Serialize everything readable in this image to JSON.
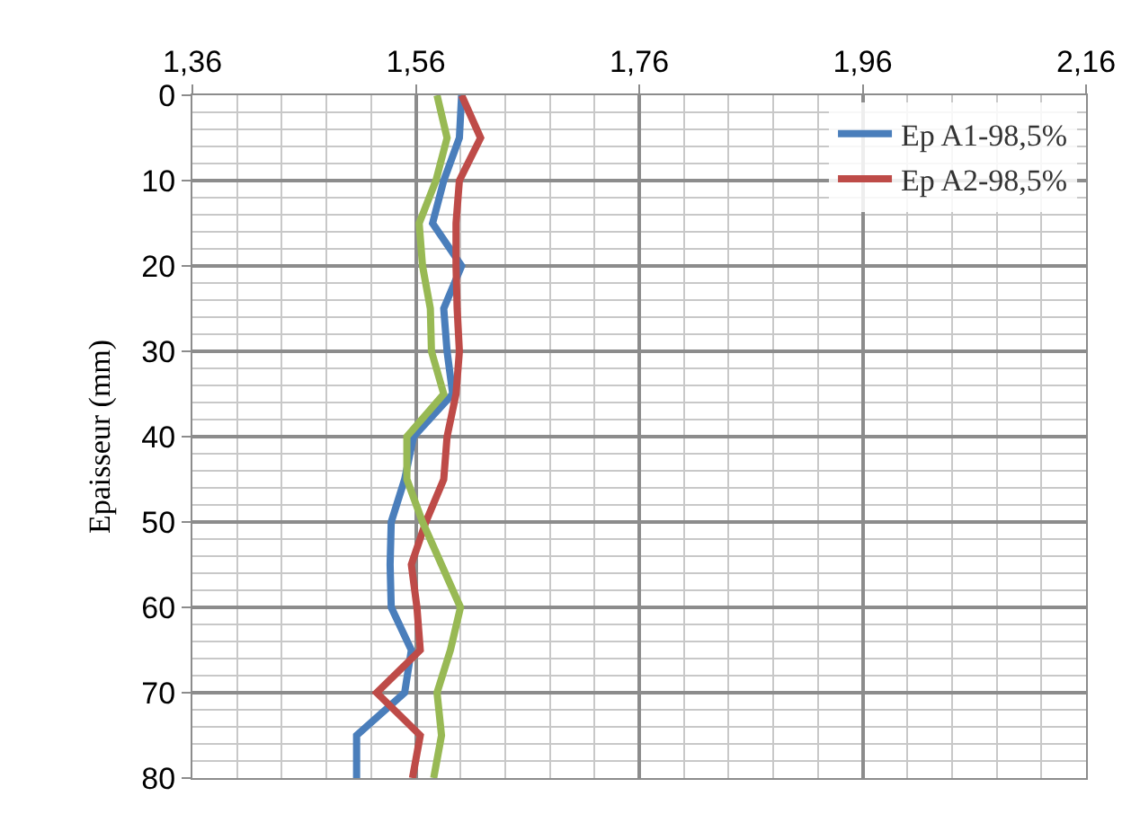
{
  "chart_data": {
    "type": "line",
    "ylabel": "Epaisseur (mm)",
    "series": [
      {
        "name": "Ep A1-98,5%",
        "color": "#4a7ebb",
        "x": [
          1.601,
          1.599,
          1.585,
          1.575,
          1.601,
          1.585,
          1.588,
          1.593,
          1.558,
          1.55,
          1.538,
          1.537,
          1.538,
          1.556,
          1.55,
          1.507,
          1.507
        ],
        "values": [
          0,
          5,
          10,
          15,
          20,
          25,
          30,
          35,
          40,
          45,
          50,
          55,
          60,
          65,
          70,
          75,
          80
        ]
      },
      {
        "name": "Ep A2-98,5%",
        "color": "#be4b48",
        "x": [
          1.601,
          1.618,
          1.599,
          1.596,
          1.596,
          1.597,
          1.599,
          1.596,
          1.588,
          1.585,
          1.569,
          1.556,
          1.561,
          1.564,
          1.525,
          1.564,
          1.557
        ],
        "values": [
          0,
          5,
          10,
          15,
          20,
          25,
          30,
          35,
          40,
          45,
          50,
          55,
          60,
          65,
          70,
          75,
          80
        ]
      },
      {
        "color": "#98b954",
        "x": [
          1.579,
          1.588,
          1.578,
          1.563,
          1.566,
          1.573,
          1.574,
          1.585,
          1.552,
          1.552,
          1.566,
          1.583,
          1.6,
          1.591,
          1.579,
          1.583,
          1.576
        ],
        "values": [
          0,
          5,
          10,
          15,
          20,
          25,
          30,
          35,
          40,
          45,
          50,
          55,
          60,
          65,
          70,
          75,
          80
        ]
      }
    ],
    "xlim": [
      1.36,
      2.16
    ],
    "xticks": [
      {
        "value": 1.36,
        "label": "1,36"
      },
      {
        "value": 1.56,
        "label": "1,56"
      },
      {
        "value": 1.76,
        "label": "1,76"
      },
      {
        "value": 1.96,
        "label": "1,96"
      },
      {
        "value": 2.16,
        "label": "2,16"
      }
    ],
    "ylim": [
      80,
      0
    ],
    "yticks": [
      0,
      10,
      20,
      30,
      40,
      50,
      60,
      70,
      80
    ],
    "grid": true,
    "legend": "top right",
    "marker": "none",
    "line_style": "solid"
  }
}
